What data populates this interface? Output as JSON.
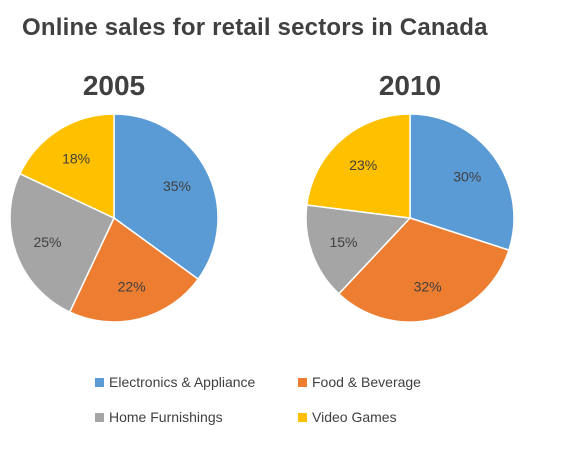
{
  "chart_data": {
    "type": "pie",
    "title": "Online sales for retail sectors in Canada",
    "categories": [
      "Electronics & Appliance",
      "Food & Beverage",
      "Home Furnishings",
      "Video Games"
    ],
    "colors": [
      "#5B9BD5",
      "#ED7D31",
      "#A5A5A5",
      "#FFC000"
    ],
    "legend_position": "bottom",
    "series": [
      {
        "name": "2005",
        "values": [
          35,
          22,
          25,
          18
        ]
      },
      {
        "name": "2010",
        "values": [
          30,
          32,
          15,
          23
        ]
      }
    ]
  }
}
